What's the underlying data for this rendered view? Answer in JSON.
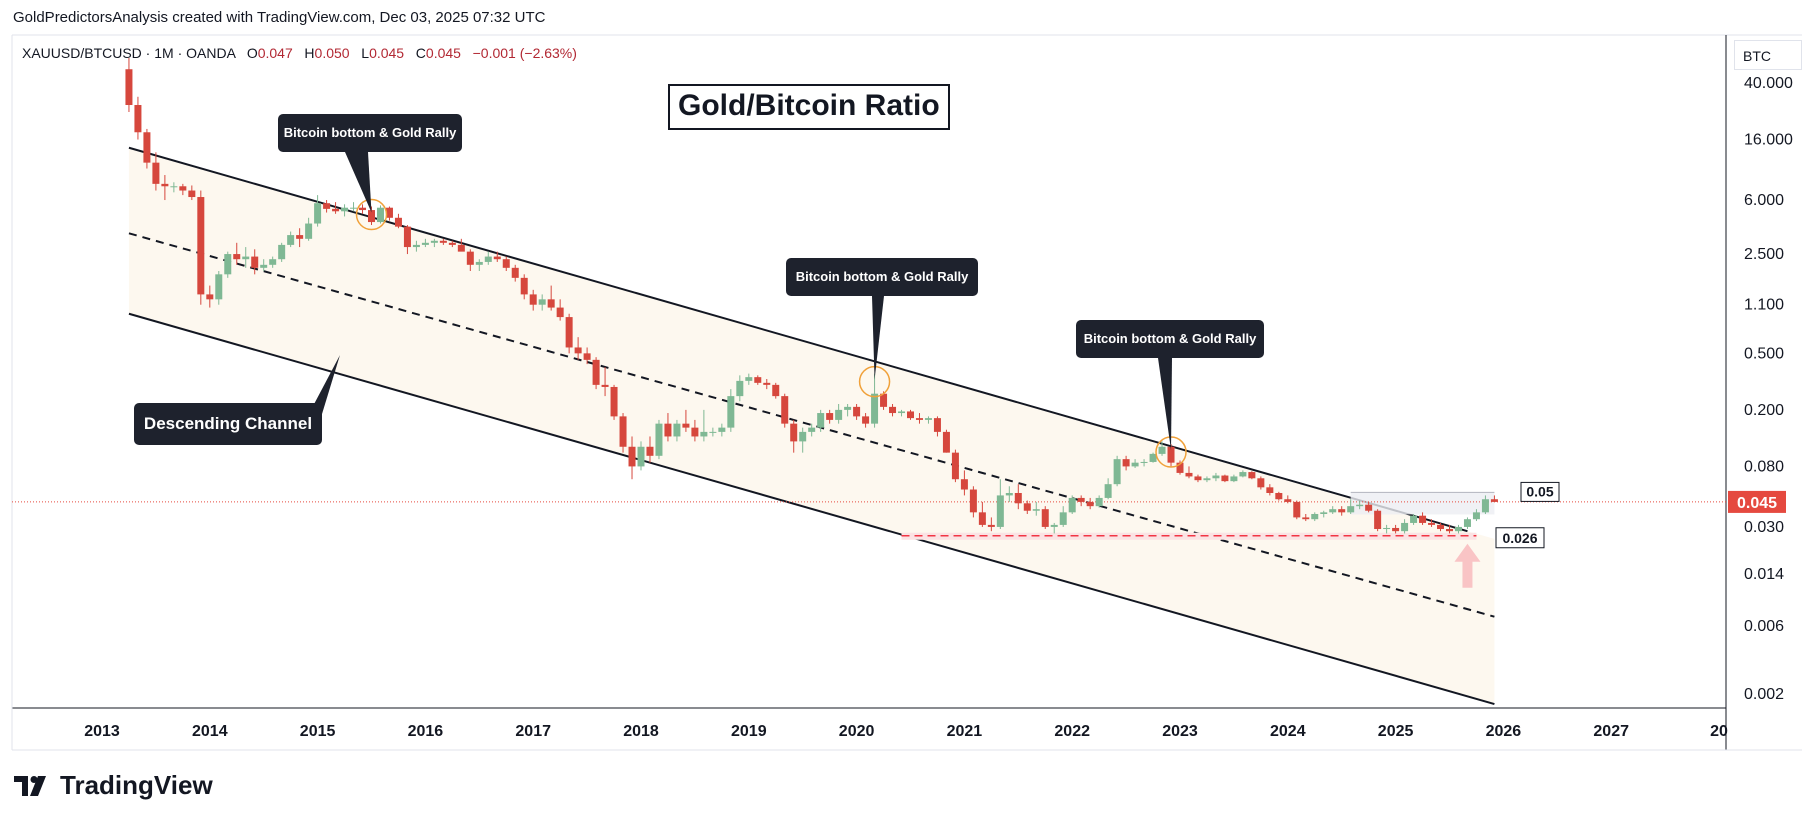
{
  "header": {
    "text": "GoldPredictorsAnalysis created with TradingView.com, Dec 03, 2025 07:32 UTC"
  },
  "symbol": {
    "name": "XAUUSD/BTCUSD · 1M · OANDA",
    "open_label": "O",
    "open": "0.047",
    "high_label": "H",
    "high": "0.050",
    "low_label": "L",
    "low": "0.045",
    "close_label": "C",
    "close": "0.045",
    "change": "−0.001 (−2.63%)"
  },
  "unit": "BTC",
  "title": "Gold/Bitcoin Ratio",
  "annotations": {
    "callout_1": "Bitcoin bottom & Gold Rally",
    "callout_2": "Bitcoin bottom & Gold Rally",
    "callout_3": "Bitcoin bottom & Gold Rally",
    "channel": "Descending Channel",
    "level_upper": "0.05",
    "level_lower": "0.026"
  },
  "price_tag": "0.045",
  "brand": "TradingView",
  "colors": {
    "bull": "#7fb894",
    "bear": "#d6473d",
    "channel_fill": "#fdf8ef",
    "price_tag": "#e5493f",
    "support": "#f23645",
    "marker": "#f0a13a"
  },
  "chart_data": {
    "type": "candlestick",
    "y_scale": "log",
    "y_ticks": [
      40,
      16,
      6,
      2.5,
      1.1,
      0.5,
      0.2,
      0.08,
      0.03,
      0.014,
      0.006,
      0.002
    ],
    "y_tick_labels": [
      "40.000",
      "16.000",
      "6.000",
      "2.500",
      "1.100",
      "0.500",
      "0.200",
      "0.080",
      "0.030",
      "0.014",
      "0.006",
      "0.002"
    ],
    "x_ticks": [
      "2013",
      "2014",
      "2015",
      "2016",
      "2017",
      "2018",
      "2019",
      "2020",
      "2021",
      "2022",
      "2023",
      "2024",
      "2025",
      "2026",
      "2027",
      "20"
    ],
    "channel": {
      "upper": [
        [
          "2013-04",
          14
        ],
        [
          "2025-09",
          0.028
        ]
      ],
      "middle": [
        [
          "2013-04",
          3.5
        ],
        [
          "2025-12",
          0.007
        ]
      ],
      "lower": [
        [
          "2013-04",
          0.95
        ],
        [
          "2025-12",
          0.0017
        ]
      ]
    },
    "support_level": 0.026,
    "resistance_level": 0.05,
    "last_close": 0.045,
    "markers": [
      "2015-07",
      "2020-03",
      "2022-12"
    ],
    "series": [
      {
        "t": "2013-04",
        "o": 50,
        "h": 60,
        "l": 25,
        "c": 28
      },
      {
        "t": "2013-05",
        "o": 28,
        "h": 32,
        "l": 16,
        "c": 18
      },
      {
        "t": "2013-06",
        "o": 18,
        "h": 19,
        "l": 10,
        "c": 11
      },
      {
        "t": "2013-07",
        "o": 11,
        "h": 13,
        "l": 7,
        "c": 7.8
      },
      {
        "t": "2013-08",
        "o": 7.8,
        "h": 9,
        "l": 6,
        "c": 7.5
      },
      {
        "t": "2013-09",
        "o": 7.5,
        "h": 8,
        "l": 6.8,
        "c": 7.5
      },
      {
        "t": "2013-10",
        "o": 7.5,
        "h": 7.8,
        "l": 6.5,
        "c": 7
      },
      {
        "t": "2013-11",
        "o": 7,
        "h": 7.6,
        "l": 6,
        "c": 6.3
      },
      {
        "t": "2013-12",
        "o": 6.3,
        "h": 7,
        "l": 1.1,
        "c": 1.3
      },
      {
        "t": "2014-01",
        "o": 1.3,
        "h": 1.5,
        "l": 1.05,
        "c": 1.2
      },
      {
        "t": "2014-02",
        "o": 1.2,
        "h": 1.9,
        "l": 1.1,
        "c": 1.8
      },
      {
        "t": "2014-03",
        "o": 1.8,
        "h": 2.6,
        "l": 1.7,
        "c": 2.5
      },
      {
        "t": "2014-04",
        "o": 2.5,
        "h": 3,
        "l": 2.1,
        "c": 2.3
      },
      {
        "t": "2014-05",
        "o": 2.3,
        "h": 2.8,
        "l": 2,
        "c": 2.4
      },
      {
        "t": "2014-06",
        "o": 2.4,
        "h": 2.7,
        "l": 1.8,
        "c": 2
      },
      {
        "t": "2014-07",
        "o": 2,
        "h": 2.3,
        "l": 1.9,
        "c": 2.1
      },
      {
        "t": "2014-08",
        "o": 2.1,
        "h": 2.4,
        "l": 2,
        "c": 2.3
      },
      {
        "t": "2014-09",
        "o": 2.3,
        "h": 3,
        "l": 2.2,
        "c": 2.9
      },
      {
        "t": "2014-10",
        "o": 2.9,
        "h": 3.6,
        "l": 2.8,
        "c": 3.4
      },
      {
        "t": "2014-11",
        "o": 3.4,
        "h": 3.8,
        "l": 2.8,
        "c": 3.2
      },
      {
        "t": "2014-12",
        "o": 3.2,
        "h": 4.5,
        "l": 3.1,
        "c": 4.1
      },
      {
        "t": "2015-01",
        "o": 4.1,
        "h": 6.5,
        "l": 3.9,
        "c": 5.7
      },
      {
        "t": "2015-02",
        "o": 5.7,
        "h": 6,
        "l": 4.9,
        "c": 5.2
      },
      {
        "t": "2015-03",
        "o": 5.2,
        "h": 5.8,
        "l": 4.8,
        "c": 5
      },
      {
        "t": "2015-04",
        "o": 5,
        "h": 5.6,
        "l": 4.6,
        "c": 5.3
      },
      {
        "t": "2015-05",
        "o": 5.3,
        "h": 5.8,
        "l": 5,
        "c": 5.3
      },
      {
        "t": "2015-06",
        "o": 5.3,
        "h": 5.6,
        "l": 4.8,
        "c": 5.1
      },
      {
        "t": "2015-07",
        "o": 5.1,
        "h": 5.4,
        "l": 4,
        "c": 4.2
      },
      {
        "t": "2015-08",
        "o": 4.2,
        "h": 5.5,
        "l": 4.1,
        "c": 5.3
      },
      {
        "t": "2015-09",
        "o": 5.3,
        "h": 5.4,
        "l": 4.3,
        "c": 4.5
      },
      {
        "t": "2015-10",
        "o": 4.5,
        "h": 4.8,
        "l": 3.8,
        "c": 3.9
      },
      {
        "t": "2015-11",
        "o": 3.9,
        "h": 4,
        "l": 2.5,
        "c": 2.8
      },
      {
        "t": "2015-12",
        "o": 2.8,
        "h": 3.1,
        "l": 2.6,
        "c": 2.9
      },
      {
        "t": "2016-01",
        "o": 2.9,
        "h": 3.2,
        "l": 2.8,
        "c": 3
      },
      {
        "t": "2016-02",
        "o": 3,
        "h": 3.2,
        "l": 2.8,
        "c": 3.1
      },
      {
        "t": "2016-03",
        "o": 3.1,
        "h": 3.2,
        "l": 2.9,
        "c": 3
      },
      {
        "t": "2016-04",
        "o": 3,
        "h": 3.1,
        "l": 2.8,
        "c": 2.9
      },
      {
        "t": "2016-05",
        "o": 2.9,
        "h": 3.2,
        "l": 2.8,
        "c": 2.6
      },
      {
        "t": "2016-06",
        "o": 2.6,
        "h": 2.7,
        "l": 1.9,
        "c": 2.1
      },
      {
        "t": "2016-07",
        "o": 2.1,
        "h": 2.3,
        "l": 1.9,
        "c": 2.2
      },
      {
        "t": "2016-08",
        "o": 2.2,
        "h": 2.6,
        "l": 2.1,
        "c": 2.4
      },
      {
        "t": "2016-09",
        "o": 2.4,
        "h": 2.6,
        "l": 2.2,
        "c": 2.3
      },
      {
        "t": "2016-10",
        "o": 2.3,
        "h": 2.4,
        "l": 1.9,
        "c": 2
      },
      {
        "t": "2016-11",
        "o": 2,
        "h": 2.1,
        "l": 1.6,
        "c": 1.7
      },
      {
        "t": "2016-12",
        "o": 1.7,
        "h": 1.8,
        "l": 1.2,
        "c": 1.3
      },
      {
        "t": "2017-01",
        "o": 1.3,
        "h": 1.4,
        "l": 1.0,
        "c": 1.1
      },
      {
        "t": "2017-02",
        "o": 1.1,
        "h": 1.3,
        "l": 1.0,
        "c": 1.2
      },
      {
        "t": "2017-03",
        "o": 1.2,
        "h": 1.5,
        "l": 1.0,
        "c": 1.05
      },
      {
        "t": "2017-04",
        "o": 1.05,
        "h": 1.2,
        "l": 0.85,
        "c": 0.9
      },
      {
        "t": "2017-05",
        "o": 0.9,
        "h": 0.95,
        "l": 0.5,
        "c": 0.55
      },
      {
        "t": "2017-06",
        "o": 0.55,
        "h": 0.65,
        "l": 0.45,
        "c": 0.5
      },
      {
        "t": "2017-07",
        "o": 0.5,
        "h": 0.55,
        "l": 0.42,
        "c": 0.45
      },
      {
        "t": "2017-08",
        "o": 0.45,
        "h": 0.47,
        "l": 0.28,
        "c": 0.3
      },
      {
        "t": "2017-09",
        "o": 0.3,
        "h": 0.4,
        "l": 0.25,
        "c": 0.29
      },
      {
        "t": "2017-10",
        "o": 0.29,
        "h": 0.3,
        "l": 0.17,
        "c": 0.18
      },
      {
        "t": "2017-11",
        "o": 0.18,
        "h": 0.19,
        "l": 0.1,
        "c": 0.11
      },
      {
        "t": "2017-12",
        "o": 0.11,
        "h": 0.13,
        "l": 0.065,
        "c": 0.08
      },
      {
        "t": "2018-01",
        "o": 0.08,
        "h": 0.12,
        "l": 0.075,
        "c": 0.11
      },
      {
        "t": "2018-02",
        "o": 0.11,
        "h": 0.13,
        "l": 0.085,
        "c": 0.095
      },
      {
        "t": "2018-03",
        "o": 0.095,
        "h": 0.17,
        "l": 0.09,
        "c": 0.16
      },
      {
        "t": "2018-04",
        "o": 0.16,
        "h": 0.19,
        "l": 0.12,
        "c": 0.13
      },
      {
        "t": "2018-05",
        "o": 0.13,
        "h": 0.17,
        "l": 0.12,
        "c": 0.16
      },
      {
        "t": "2018-06",
        "o": 0.16,
        "h": 0.2,
        "l": 0.14,
        "c": 0.15
      },
      {
        "t": "2018-07",
        "o": 0.15,
        "h": 0.17,
        "l": 0.12,
        "c": 0.13
      },
      {
        "t": "2018-08",
        "o": 0.13,
        "h": 0.2,
        "l": 0.12,
        "c": 0.14
      },
      {
        "t": "2018-09",
        "o": 0.14,
        "h": 0.15,
        "l": 0.13,
        "c": 0.14
      },
      {
        "t": "2018-10",
        "o": 0.14,
        "h": 0.16,
        "l": 0.13,
        "c": 0.15
      },
      {
        "t": "2018-11",
        "o": 0.15,
        "h": 0.28,
        "l": 0.14,
        "c": 0.25
      },
      {
        "t": "2018-12",
        "o": 0.25,
        "h": 0.35,
        "l": 0.23,
        "c": 0.32
      },
      {
        "t": "2019-01",
        "o": 0.32,
        "h": 0.36,
        "l": 0.3,
        "c": 0.34
      },
      {
        "t": "2019-02",
        "o": 0.34,
        "h": 0.35,
        "l": 0.3,
        "c": 0.31
      },
      {
        "t": "2019-03",
        "o": 0.31,
        "h": 0.33,
        "l": 0.28,
        "c": 0.3
      },
      {
        "t": "2019-04",
        "o": 0.3,
        "h": 0.31,
        "l": 0.24,
        "c": 0.25
      },
      {
        "t": "2019-05",
        "o": 0.25,
        "h": 0.26,
        "l": 0.15,
        "c": 0.16
      },
      {
        "t": "2019-06",
        "o": 0.16,
        "h": 0.17,
        "l": 0.1,
        "c": 0.12
      },
      {
        "t": "2019-07",
        "o": 0.12,
        "h": 0.15,
        "l": 0.1,
        "c": 0.14
      },
      {
        "t": "2019-08",
        "o": 0.14,
        "h": 0.16,
        "l": 0.13,
        "c": 0.15
      },
      {
        "t": "2019-09",
        "o": 0.15,
        "h": 0.2,
        "l": 0.14,
        "c": 0.19
      },
      {
        "t": "2019-10",
        "o": 0.19,
        "h": 0.2,
        "l": 0.16,
        "c": 0.17
      },
      {
        "t": "2019-11",
        "o": 0.17,
        "h": 0.22,
        "l": 0.16,
        "c": 0.2
      },
      {
        "t": "2019-12",
        "o": 0.2,
        "h": 0.22,
        "l": 0.18,
        "c": 0.21
      },
      {
        "t": "2020-01",
        "o": 0.21,
        "h": 0.22,
        "l": 0.17,
        "c": 0.18
      },
      {
        "t": "2020-02",
        "o": 0.18,
        "h": 0.19,
        "l": 0.15,
        "c": 0.16
      },
      {
        "t": "2020-03",
        "o": 0.16,
        "h": 0.36,
        "l": 0.15,
        "c": 0.26
      },
      {
        "t": "2020-04",
        "o": 0.26,
        "h": 0.27,
        "l": 0.2,
        "c": 0.21
      },
      {
        "t": "2020-05",
        "o": 0.21,
        "h": 0.22,
        "l": 0.18,
        "c": 0.19
      },
      {
        "t": "2020-06",
        "o": 0.19,
        "h": 0.2,
        "l": 0.18,
        "c": 0.195
      },
      {
        "t": "2020-07",
        "o": 0.195,
        "h": 0.2,
        "l": 0.17,
        "c": 0.175
      },
      {
        "t": "2020-08",
        "o": 0.175,
        "h": 0.19,
        "l": 0.16,
        "c": 0.17
      },
      {
        "t": "2020-09",
        "o": 0.17,
        "h": 0.18,
        "l": 0.16,
        "c": 0.175
      },
      {
        "t": "2020-10",
        "o": 0.175,
        "h": 0.18,
        "l": 0.13,
        "c": 0.14
      },
      {
        "t": "2020-11",
        "o": 0.14,
        "h": 0.145,
        "l": 0.1,
        "c": 0.1
      },
      {
        "t": "2020-12",
        "o": 0.1,
        "h": 0.105,
        "l": 0.062,
        "c": 0.065
      },
      {
        "t": "2021-01",
        "o": 0.065,
        "h": 0.075,
        "l": 0.05,
        "c": 0.055
      },
      {
        "t": "2021-02",
        "o": 0.055,
        "h": 0.058,
        "l": 0.035,
        "c": 0.038
      },
      {
        "t": "2021-03",
        "o": 0.038,
        "h": 0.045,
        "l": 0.03,
        "c": 0.031
      },
      {
        "t": "2021-04",
        "o": 0.031,
        "h": 0.035,
        "l": 0.028,
        "c": 0.03
      },
      {
        "t": "2021-05",
        "o": 0.03,
        "h": 0.065,
        "l": 0.029,
        "c": 0.05
      },
      {
        "t": "2021-06",
        "o": 0.05,
        "h": 0.058,
        "l": 0.045,
        "c": 0.052
      },
      {
        "t": "2021-07",
        "o": 0.052,
        "h": 0.06,
        "l": 0.04,
        "c": 0.044
      },
      {
        "t": "2021-08",
        "o": 0.044,
        "h": 0.046,
        "l": 0.037,
        "c": 0.039
      },
      {
        "t": "2021-09",
        "o": 0.039,
        "h": 0.045,
        "l": 0.036,
        "c": 0.04
      },
      {
        "t": "2021-10",
        "o": 0.04,
        "h": 0.042,
        "l": 0.029,
        "c": 0.03
      },
      {
        "t": "2021-11",
        "o": 0.03,
        "h": 0.032,
        "l": 0.027,
        "c": 0.031
      },
      {
        "t": "2021-12",
        "o": 0.031,
        "h": 0.042,
        "l": 0.03,
        "c": 0.038
      },
      {
        "t": "2022-01",
        "o": 0.038,
        "h": 0.05,
        "l": 0.037,
        "c": 0.048
      },
      {
        "t": "2022-02",
        "o": 0.048,
        "h": 0.05,
        "l": 0.042,
        "c": 0.045
      },
      {
        "t": "2022-03",
        "o": 0.045,
        "h": 0.048,
        "l": 0.04,
        "c": 0.042
      },
      {
        "t": "2022-04",
        "o": 0.042,
        "h": 0.05,
        "l": 0.041,
        "c": 0.048
      },
      {
        "t": "2022-05",
        "o": 0.048,
        "h": 0.066,
        "l": 0.047,
        "c": 0.06
      },
      {
        "t": "2022-06",
        "o": 0.06,
        "h": 0.095,
        "l": 0.058,
        "c": 0.09
      },
      {
        "t": "2022-07",
        "o": 0.09,
        "h": 0.095,
        "l": 0.075,
        "c": 0.08
      },
      {
        "t": "2022-08",
        "o": 0.08,
        "h": 0.09,
        "l": 0.078,
        "c": 0.085
      },
      {
        "t": "2022-09",
        "o": 0.085,
        "h": 0.09,
        "l": 0.08,
        "c": 0.086
      },
      {
        "t": "2022-10",
        "o": 0.086,
        "h": 0.1,
        "l": 0.085,
        "c": 0.098
      },
      {
        "t": "2022-11",
        "o": 0.098,
        "h": 0.12,
        "l": 0.095,
        "c": 0.11
      },
      {
        "t": "2022-12",
        "o": 0.11,
        "h": 0.115,
        "l": 0.08,
        "c": 0.085
      },
      {
        "t": "2023-01",
        "o": 0.085,
        "h": 0.088,
        "l": 0.07,
        "c": 0.072
      },
      {
        "t": "2023-02",
        "o": 0.072,
        "h": 0.08,
        "l": 0.066,
        "c": 0.068
      },
      {
        "t": "2023-03",
        "o": 0.068,
        "h": 0.07,
        "l": 0.062,
        "c": 0.064
      },
      {
        "t": "2023-04",
        "o": 0.064,
        "h": 0.068,
        "l": 0.062,
        "c": 0.066
      },
      {
        "t": "2023-05",
        "o": 0.066,
        "h": 0.072,
        "l": 0.063,
        "c": 0.069
      },
      {
        "t": "2023-06",
        "o": 0.069,
        "h": 0.07,
        "l": 0.062,
        "c": 0.063
      },
      {
        "t": "2023-07",
        "o": 0.063,
        "h": 0.07,
        "l": 0.062,
        "c": 0.068
      },
      {
        "t": "2023-08",
        "o": 0.068,
        "h": 0.075,
        "l": 0.067,
        "c": 0.073
      },
      {
        "t": "2023-09",
        "o": 0.073,
        "h": 0.074,
        "l": 0.065,
        "c": 0.066
      },
      {
        "t": "2023-10",
        "o": 0.066,
        "h": 0.068,
        "l": 0.055,
        "c": 0.057
      },
      {
        "t": "2023-11",
        "o": 0.057,
        "h": 0.06,
        "l": 0.05,
        "c": 0.052
      },
      {
        "t": "2023-12",
        "o": 0.052,
        "h": 0.053,
        "l": 0.046,
        "c": 0.047
      },
      {
        "t": "2024-01",
        "o": 0.047,
        "h": 0.05,
        "l": 0.044,
        "c": 0.045
      },
      {
        "t": "2024-02",
        "o": 0.045,
        "h": 0.046,
        "l": 0.034,
        "c": 0.035
      },
      {
        "t": "2024-03",
        "o": 0.035,
        "h": 0.037,
        "l": 0.033,
        "c": 0.034
      },
      {
        "t": "2024-04",
        "o": 0.034,
        "h": 0.038,
        "l": 0.033,
        "c": 0.037
      },
      {
        "t": "2024-05",
        "o": 0.037,
        "h": 0.039,
        "l": 0.035,
        "c": 0.038
      },
      {
        "t": "2024-06",
        "o": 0.038,
        "h": 0.042,
        "l": 0.037,
        "c": 0.04
      },
      {
        "t": "2024-07",
        "o": 0.04,
        "h": 0.042,
        "l": 0.036,
        "c": 0.038
      },
      {
        "t": "2024-08",
        "o": 0.038,
        "h": 0.047,
        "l": 0.037,
        "c": 0.042
      },
      {
        "t": "2024-09",
        "o": 0.042,
        "h": 0.046,
        "l": 0.04,
        "c": 0.043
      },
      {
        "t": "2024-10",
        "o": 0.043,
        "h": 0.045,
        "l": 0.038,
        "c": 0.039
      },
      {
        "t": "2024-11",
        "o": 0.039,
        "h": 0.04,
        "l": 0.028,
        "c": 0.029
      },
      {
        "t": "2024-12",
        "o": 0.029,
        "h": 0.031,
        "l": 0.027,
        "c": 0.0295
      },
      {
        "t": "2025-01",
        "o": 0.0295,
        "h": 0.031,
        "l": 0.027,
        "c": 0.028
      },
      {
        "t": "2025-02",
        "o": 0.028,
        "h": 0.034,
        "l": 0.027,
        "c": 0.032
      },
      {
        "t": "2025-03",
        "o": 0.032,
        "h": 0.037,
        "l": 0.031,
        "c": 0.036
      },
      {
        "t": "2025-04",
        "o": 0.036,
        "h": 0.038,
        "l": 0.031,
        "c": 0.032
      },
      {
        "t": "2025-05",
        "o": 0.032,
        "h": 0.034,
        "l": 0.03,
        "c": 0.031
      },
      {
        "t": "2025-06",
        "o": 0.031,
        "h": 0.032,
        "l": 0.028,
        "c": 0.029
      },
      {
        "t": "2025-07",
        "o": 0.029,
        "h": 0.031,
        "l": 0.027,
        "c": 0.028
      },
      {
        "t": "2025-08",
        "o": 0.028,
        "h": 0.031,
        "l": 0.027,
        "c": 0.03
      },
      {
        "t": "2025-09",
        "o": 0.03,
        "h": 0.035,
        "l": 0.029,
        "c": 0.034
      },
      {
        "t": "2025-10",
        "o": 0.034,
        "h": 0.04,
        "l": 0.033,
        "c": 0.038
      },
      {
        "t": "2025-11",
        "o": 0.038,
        "h": 0.05,
        "l": 0.037,
        "c": 0.047
      },
      {
        "t": "2025-12",
        "o": 0.047,
        "h": 0.05,
        "l": 0.045,
        "c": 0.045
      }
    ]
  }
}
